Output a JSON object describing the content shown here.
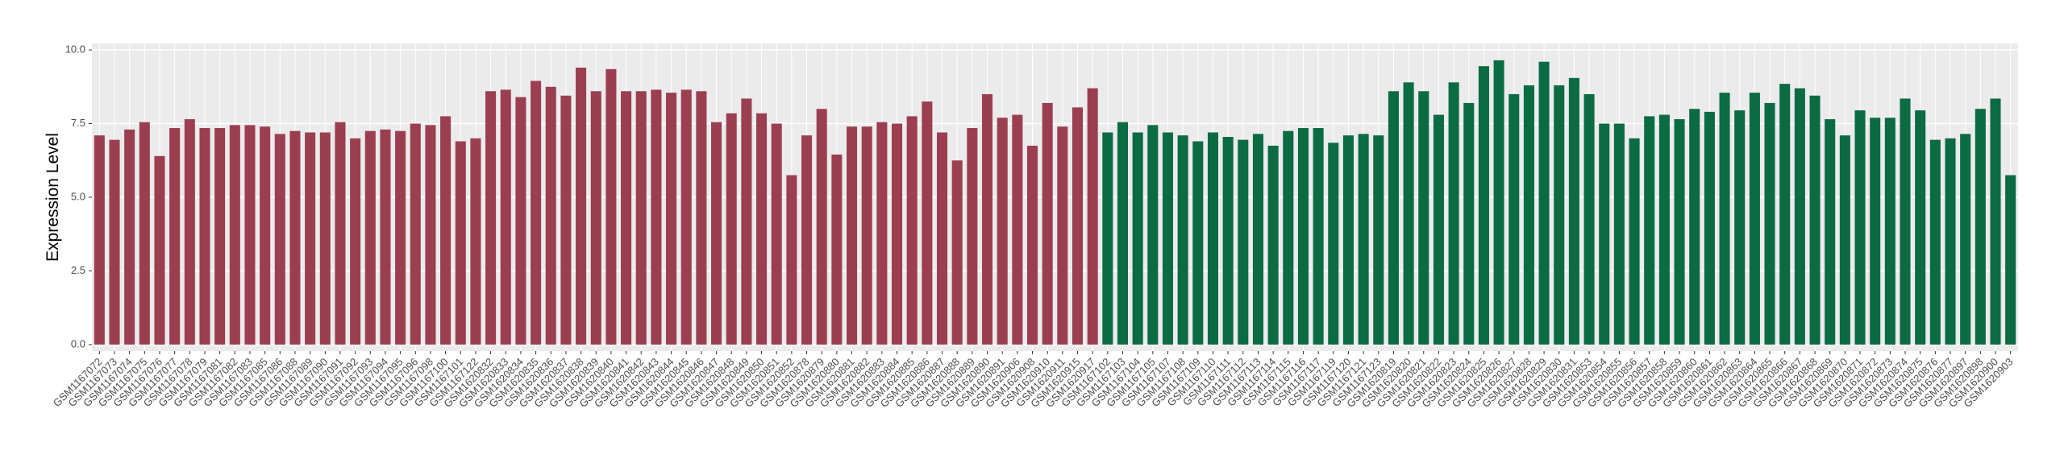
{
  "chart_data": {
    "type": "bar",
    "y_label": "Expression Level",
    "ylim": [
      -0.22,
      10.22
    ],
    "yticks": [
      {
        "value": 0,
        "label": "0.0"
      },
      2.5,
      {
        "value": 5,
        "label": "5.0"
      },
      7.5,
      {
        "value": 10,
        "label": "10.0"
      }
    ],
    "grid": true,
    "series": [
      {
        "color": "#9b3f50",
        "categories": [
          "GSM1167072",
          "GSM1167073",
          "GSM1167074",
          "GSM1167075",
          "GSM1167076",
          "GSM1167077",
          "GSM1167078",
          "GSM1167079",
          "GSM1167081",
          "GSM1167082",
          "GSM1167083",
          "GSM1167085",
          "GSM1167086",
          "GSM1167088",
          "GSM1167089",
          "GSM1167090",
          "GSM1167091",
          "GSM1167092",
          "GSM1167093",
          "GSM1167094",
          "GSM1167095",
          "GSM1167096",
          "GSM1167098",
          "GSM1167100",
          "GSM1167101",
          "GSM1167122",
          "GSM1620832",
          "GSM1620833",
          "GSM1620834",
          "GSM1620835",
          "GSM1620836",
          "GSM1620837",
          "GSM1620838",
          "GSM1620839",
          "GSM1620840",
          "GSM1620841",
          "GSM1620842",
          "GSM1620843",
          "GSM1620844",
          "GSM1620845",
          "GSM1620846",
          "GSM1620847",
          "GSM1620848",
          "GSM1620849",
          "GSM1620850",
          "GSM1620851",
          "GSM1620852",
          "GSM1620878",
          "GSM1620879",
          "GSM1620880",
          "GSM1620881",
          "GSM1620882",
          "GSM1620883",
          "GSM1620884",
          "GSM1620885",
          "GSM1620886",
          "GSM1620887",
          "GSM1620888",
          "GSM1620889",
          "GSM1620890",
          "GSM1620891",
          "GSM1620906",
          "GSM1620908",
          "GSM1620910",
          "GSM1620911",
          "GSM1620915",
          "GSM1620917"
        ],
        "values": [
          7.1,
          6.95,
          7.3,
          7.55,
          6.4,
          7.35,
          7.65,
          7.35,
          7.35,
          7.45,
          7.45,
          7.4,
          7.15,
          7.25,
          7.2,
          7.2,
          7.55,
          7.0,
          7.25,
          7.3,
          7.25,
          7.5,
          7.45,
          7.75,
          6.9,
          7.0,
          8.6,
          8.65,
          8.4,
          8.95,
          8.75,
          8.45,
          9.4,
          8.6,
          9.35,
          8.6,
          8.6,
          8.65,
          8.55,
          8.65,
          8.6,
          7.55,
          7.85,
          8.35,
          7.85,
          7.5,
          5.75,
          7.1,
          8.0,
          6.45,
          7.4,
          7.4,
          7.55,
          7.5,
          7.75,
          8.25,
          7.2,
          6.25,
          7.35,
          8.5,
          7.7,
          7.8,
          6.75,
          8.2,
          7.4,
          8.05,
          8.7
        ]
      },
      {
        "color": "#0b6b43",
        "categories": [
          "GSM1167102",
          "GSM1167103",
          "GSM1167104",
          "GSM1167105",
          "GSM1167107",
          "GSM1167108",
          "GSM1167109",
          "GSM1167110",
          "GSM1167111",
          "GSM1167112",
          "GSM1167113",
          "GSM1167114",
          "GSM1167115",
          "GSM1167116",
          "GSM1167117",
          "GSM1167119",
          "GSM1167120",
          "GSM1167121",
          "GSM1167123",
          "GSM1620819",
          "GSM1620820",
          "GSM1620821",
          "GSM1620822",
          "GSM1620823",
          "GSM1620824",
          "GSM1620825",
          "GSM1620826",
          "GSM1620827",
          "GSM1620828",
          "GSM1620829",
          "GSM1620830",
          "GSM1620831",
          "GSM1620853",
          "GSM1620854",
          "GSM1620855",
          "GSM1620856",
          "GSM1620857",
          "GSM1620858",
          "GSM1620859",
          "GSM1620860",
          "GSM1620861",
          "GSM1620862",
          "GSM1620863",
          "GSM1620864",
          "GSM1620865",
          "GSM1620866",
          "GSM1620867",
          "GSM1620868",
          "GSM1620869",
          "GSM1620870",
          "GSM1620871",
          "GSM1620872",
          "GSM1620873",
          "GSM1620874",
          "GSM1620875",
          "GSM1620876",
          "GSM1620877",
          "GSM1620897",
          "GSM1620898",
          "GSM1620900",
          "GSM1620903"
        ],
        "values": [
          7.2,
          7.55,
          7.2,
          7.45,
          7.2,
          7.1,
          6.9,
          7.2,
          7.05,
          6.95,
          7.15,
          6.75,
          7.25,
          7.35,
          7.35,
          6.85,
          7.1,
          7.15,
          7.1,
          8.6,
          8.9,
          8.6,
          7.8,
          8.9,
          8.2,
          9.45,
          9.65,
          8.5,
          8.8,
          9.6,
          8.8,
          9.05,
          8.5,
          7.5,
          7.5,
          7.0,
          7.75,
          7.8,
          7.65,
          8.0,
          7.9,
          8.55,
          7.95,
          8.55,
          8.2,
          8.85,
          8.7,
          8.45,
          7.65,
          7.1,
          7.95,
          7.7,
          7.7,
          8.35,
          7.95,
          6.95,
          7.0,
          7.15,
          8.0,
          8.35,
          5.75
        ]
      }
    ]
  }
}
